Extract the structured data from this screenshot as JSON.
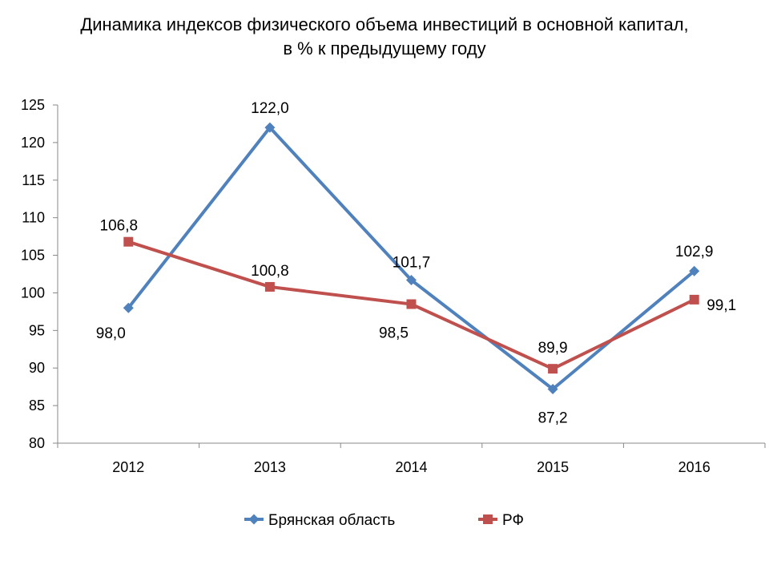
{
  "chart_data": {
    "type": "line",
    "title": "Динамика индексов физического объема инвестиций в основной капитал,",
    "subtitle": "в % к предыдущему году",
    "categories": [
      "2012",
      "2013",
      "2014",
      "2015",
      "2016"
    ],
    "ylim": [
      80,
      125
    ],
    "yticks": [
      80,
      85,
      90,
      95,
      100,
      105,
      110,
      115,
      120,
      125
    ],
    "grid": false,
    "legend_position": "bottom",
    "series": [
      {
        "name": "Брянская область",
        "color": "#4f81bd",
        "marker": "diamond",
        "values": [
          98.0,
          122.0,
          101.7,
          87.2,
          102.9
        ],
        "labels": [
          "98,0",
          "122,0",
          "101,7",
          "87,2",
          "102,9"
        ]
      },
      {
        "name": "РФ",
        "color": "#c0504d",
        "marker": "square",
        "values": [
          106.8,
          100.8,
          98.5,
          89.9,
          99.1
        ],
        "labels": [
          "106,8",
          "100,8",
          "98,5",
          "89,9",
          "99,1"
        ]
      }
    ]
  }
}
